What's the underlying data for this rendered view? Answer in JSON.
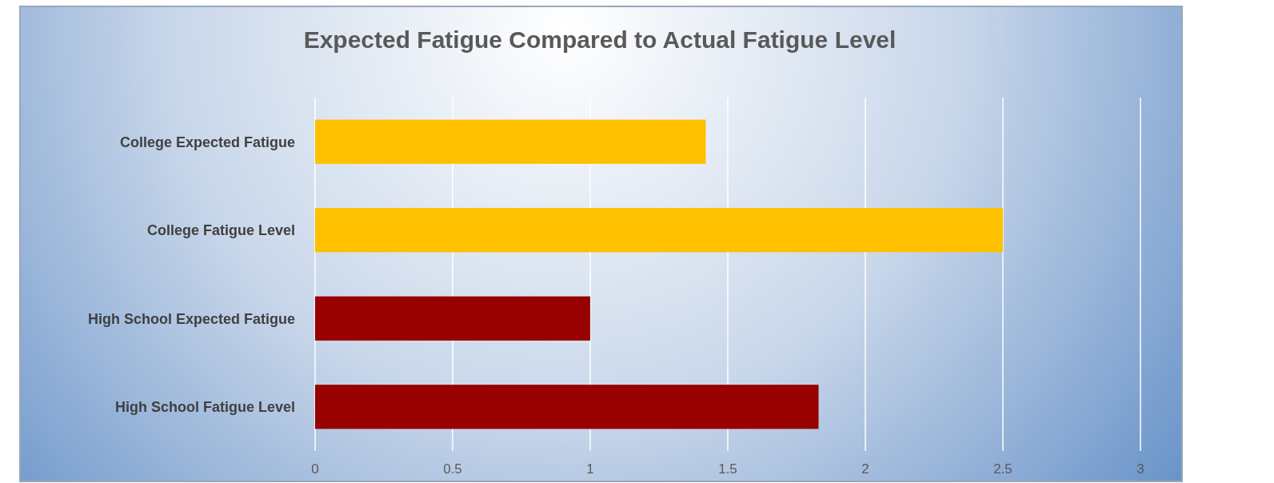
{
  "chart_data": {
    "type": "bar",
    "orientation": "horizontal",
    "title": "Expected Fatigue Compared to Actual Fatigue Level",
    "categories": [
      "College Expected Fatigue",
      "College Fatigue Level",
      "High School Expected Fatigue",
      "High School Fatigue Level"
    ],
    "values": [
      1.42,
      2.5,
      1,
      1.83
    ],
    "colors": [
      "#ffc000",
      "#ffc000",
      "#990000",
      "#990000"
    ],
    "xlim": [
      0,
      3
    ],
    "xticks": [
      0,
      0.5,
      1,
      1.5,
      2,
      2.5,
      3
    ],
    "grid": "x"
  }
}
